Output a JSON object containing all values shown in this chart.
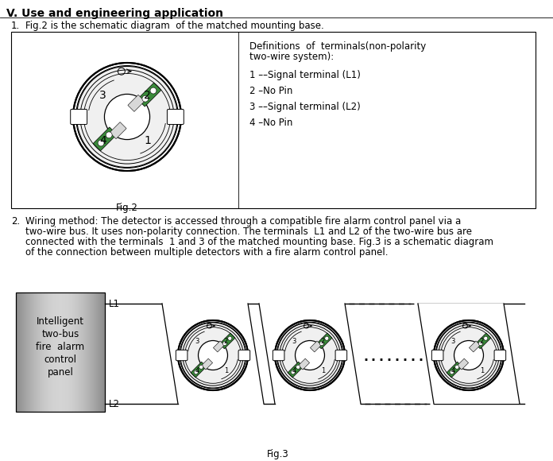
{
  "title_section": "V. Use and engineering application",
  "point1_text": "Fig.2 is the schematic diagram  of the matched mounting base.",
  "fig2_caption": "Fig.2",
  "fig3_caption": "Fig.3",
  "definitions_title": "Definitions  of  terminals(non-polarity",
  "definitions_subtitle": "two-wire system):",
  "terminal_defs": [
    "1 ––Signal terminal (L1)",
    "2 –No Pin",
    "3 ––Signal terminal (L2)",
    "4 –No Pin"
  ],
  "lines_p2": [
    "Wiring method: The detector is accessed through a compatible fire alarm control panel via a",
    "two-wire bus. It uses non-polarity connection. The terminals  L1 and L2 of the two-wire bus are",
    "connected with the terminals  1 and 3 of the matched mounting base. Fig.3 is a schematic diagram",
    "of the connection between multiple detectors with a fire alarm control panel."
  ],
  "panel_label_lines": [
    "Intelligent",
    "two-bus",
    "fire  alarm",
    "control",
    "panel"
  ],
  "L1_label": "L1",
  "L2_label": "L2",
  "bg_color": "#ffffff",
  "border_color": "#000000",
  "green_color": "#3a8a3a",
  "text_color": "#000000"
}
